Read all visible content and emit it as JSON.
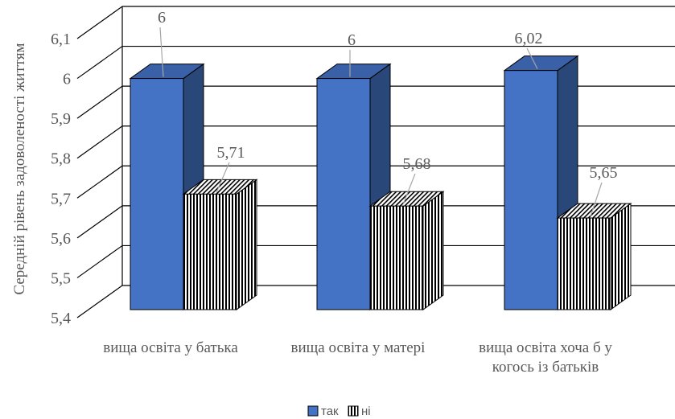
{
  "chart_data": {
    "type": "bar",
    "style": "3d-clustered-column",
    "categories": [
      [
        "вища освіта у батька"
      ],
      [
        "вища освіта у матері"
      ],
      [
        "вища освіта хоча б у",
        "когось із батьків"
      ]
    ],
    "series": [
      {
        "name": "так",
        "values": [
          6,
          6,
          6.02
        ],
        "labels": [
          "6",
          "6",
          "6,02"
        ],
        "color": "#4472C4",
        "pattern": "solid"
      },
      {
        "name": "ні",
        "values": [
          5.71,
          5.68,
          5.65
        ],
        "labels": [
          "5,71",
          "5,68",
          "5,65"
        ],
        "color": "#000000",
        "pattern": "vertical-stripes"
      }
    ],
    "ylabel": "Середній рівень задоволеності життям",
    "yticks": [
      "5,4",
      "5,5",
      "5,6",
      "5,7",
      "5,8",
      "5,9",
      "6",
      "6,1"
    ],
    "ylim": [
      5.4,
      6.1
    ],
    "ystep": 0.1,
    "grid": true,
    "legend_position": "bottom"
  }
}
